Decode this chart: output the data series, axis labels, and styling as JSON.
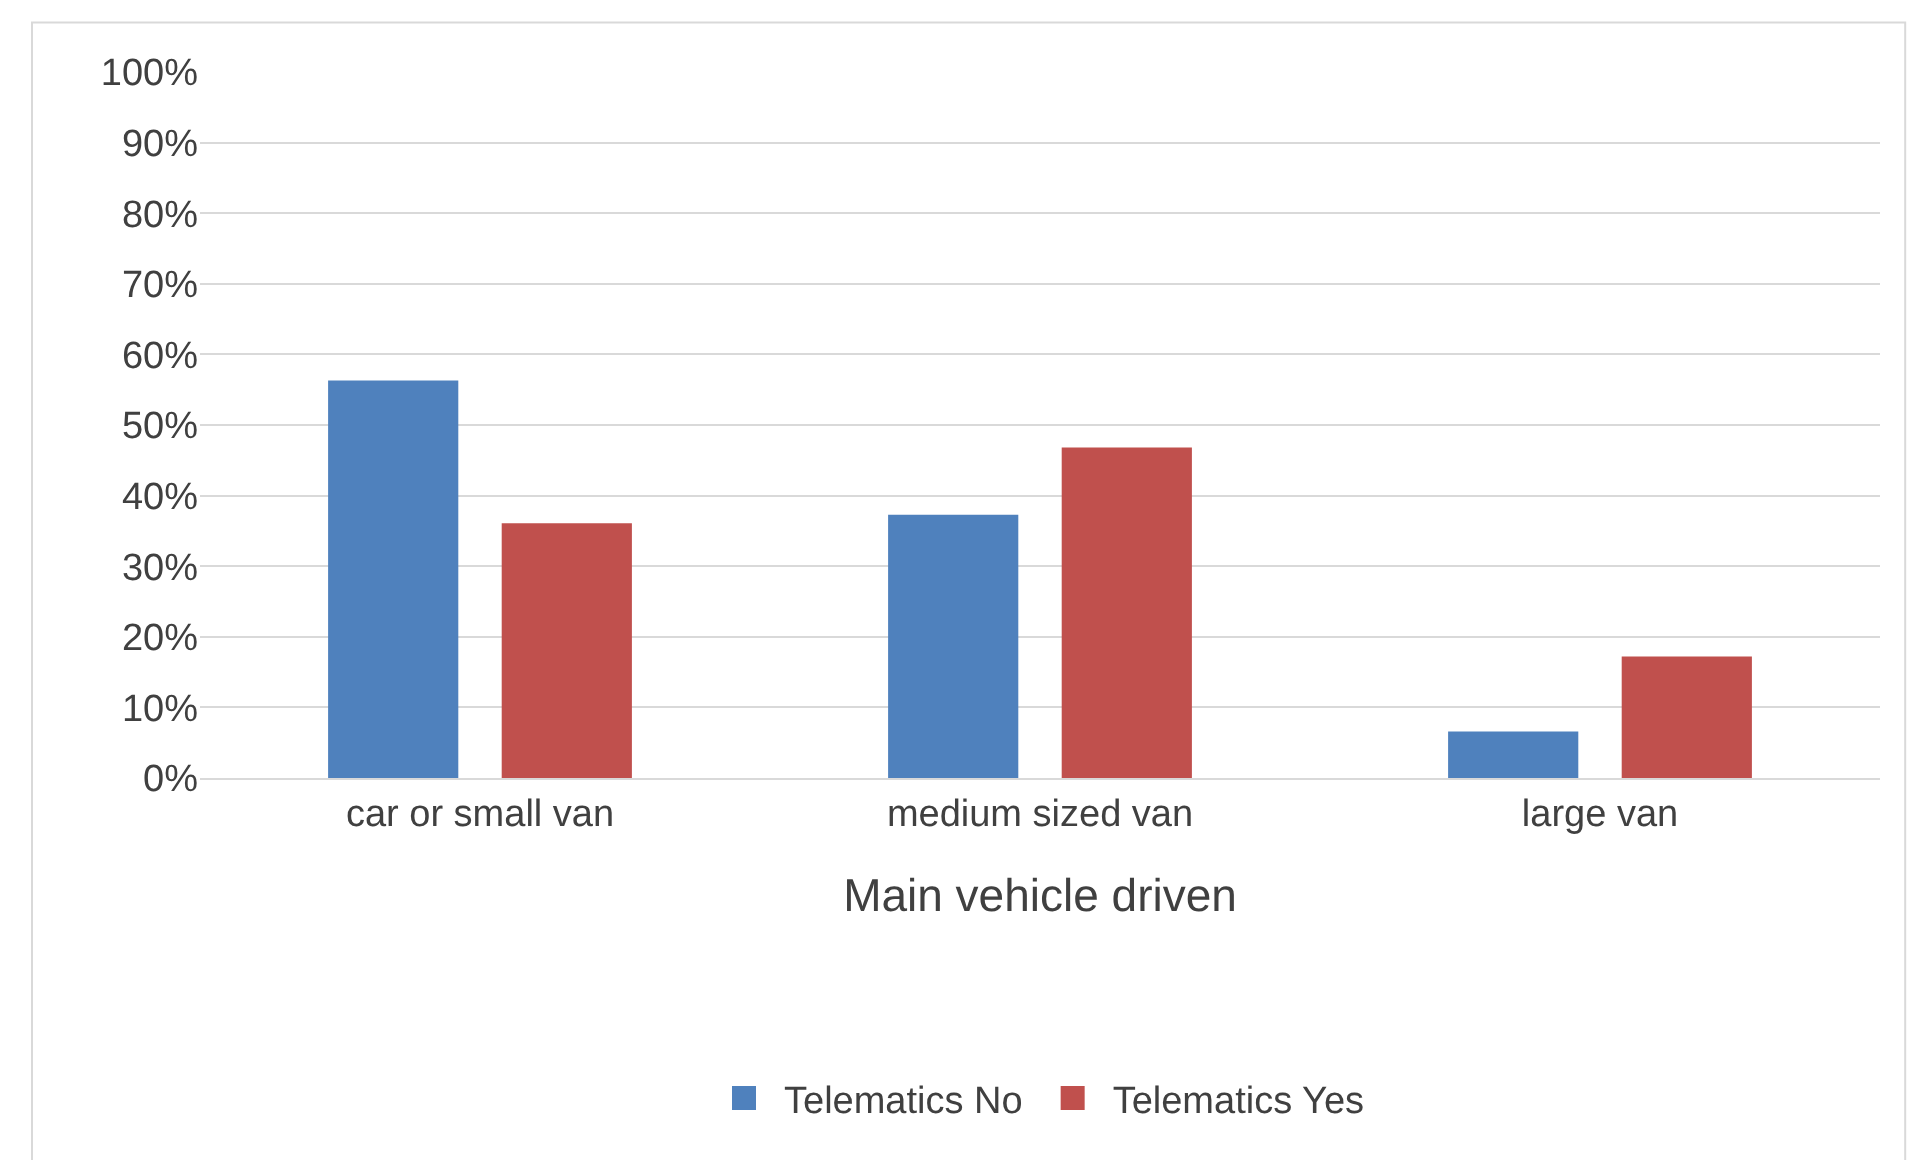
{
  "chart_data": {
    "type": "bar",
    "xlabel": "Main vehicle driven",
    "categories": [
      "car or small van",
      "medium sized van",
      "large van"
    ],
    "series": [
      {
        "name": "Telematics No",
        "color": "#4f81bd",
        "values": [
          56.3,
          37.3,
          6.6
        ]
      },
      {
        "name": "Telematics Yes",
        "color": "#c0504d",
        "values": [
          36.1,
          46.8,
          17.2
        ]
      }
    ],
    "ylim": [
      0,
      100
    ],
    "yticks": [
      {
        "value": 0,
        "label": "0%"
      },
      {
        "value": 10,
        "label": "10%"
      },
      {
        "value": 20,
        "label": "20%"
      },
      {
        "value": 30,
        "label": "30%"
      },
      {
        "value": 40,
        "label": "40%"
      },
      {
        "value": 50,
        "label": "50%"
      },
      {
        "value": 60,
        "label": "60%"
      },
      {
        "value": 70,
        "label": "70%"
      },
      {
        "value": 80,
        "label": "80%"
      },
      {
        "value": 90,
        "label": "90%"
      },
      {
        "value": 100,
        "label": "100%"
      }
    ],
    "grid": "y",
    "legend": "bottom"
  }
}
